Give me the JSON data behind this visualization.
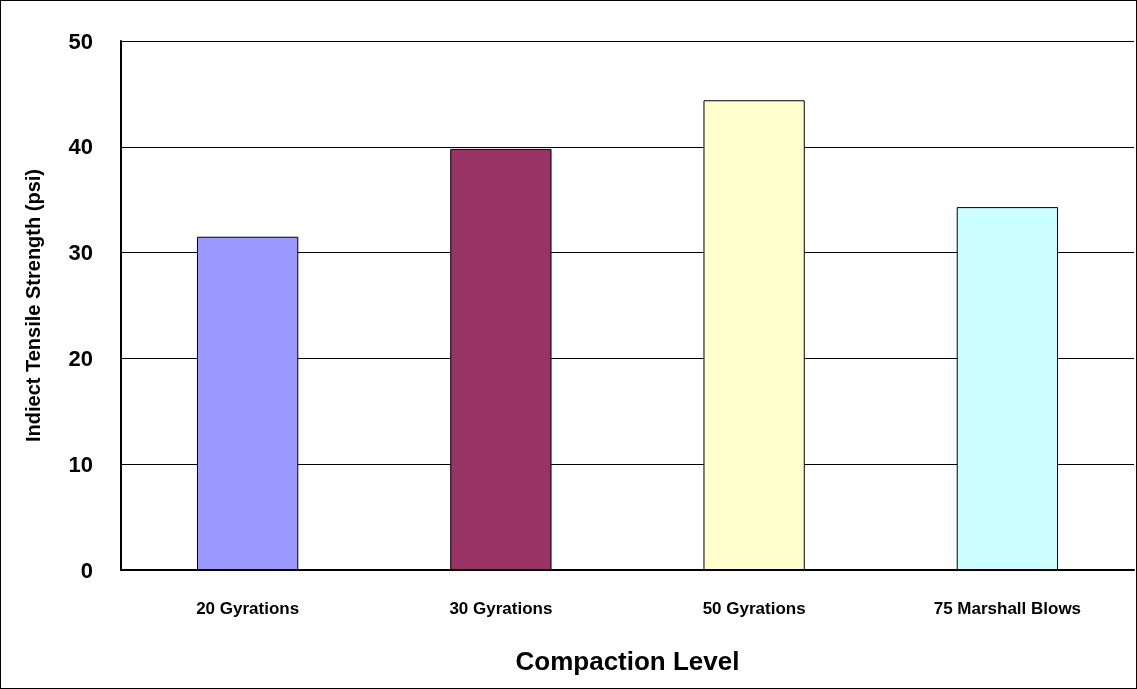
{
  "chart_data": {
    "type": "bar",
    "xlabel": "Compaction Level",
    "ylabel": "Indiect Tensile Strength (psi)",
    "categories": [
      "20 Gyrations",
      "30 Gyrations",
      "50 Gyrations",
      "75 Marshall Blows"
    ],
    "values": [
      31.5,
      39.8,
      44.4,
      34.3
    ],
    "colors": [
      "#9999ff",
      "#993366",
      "#ffffcc",
      "#ccffff"
    ],
    "ylim": [
      0,
      50
    ],
    "yticks": [
      0,
      10,
      20,
      30,
      40,
      50
    ],
    "grid": "y"
  }
}
